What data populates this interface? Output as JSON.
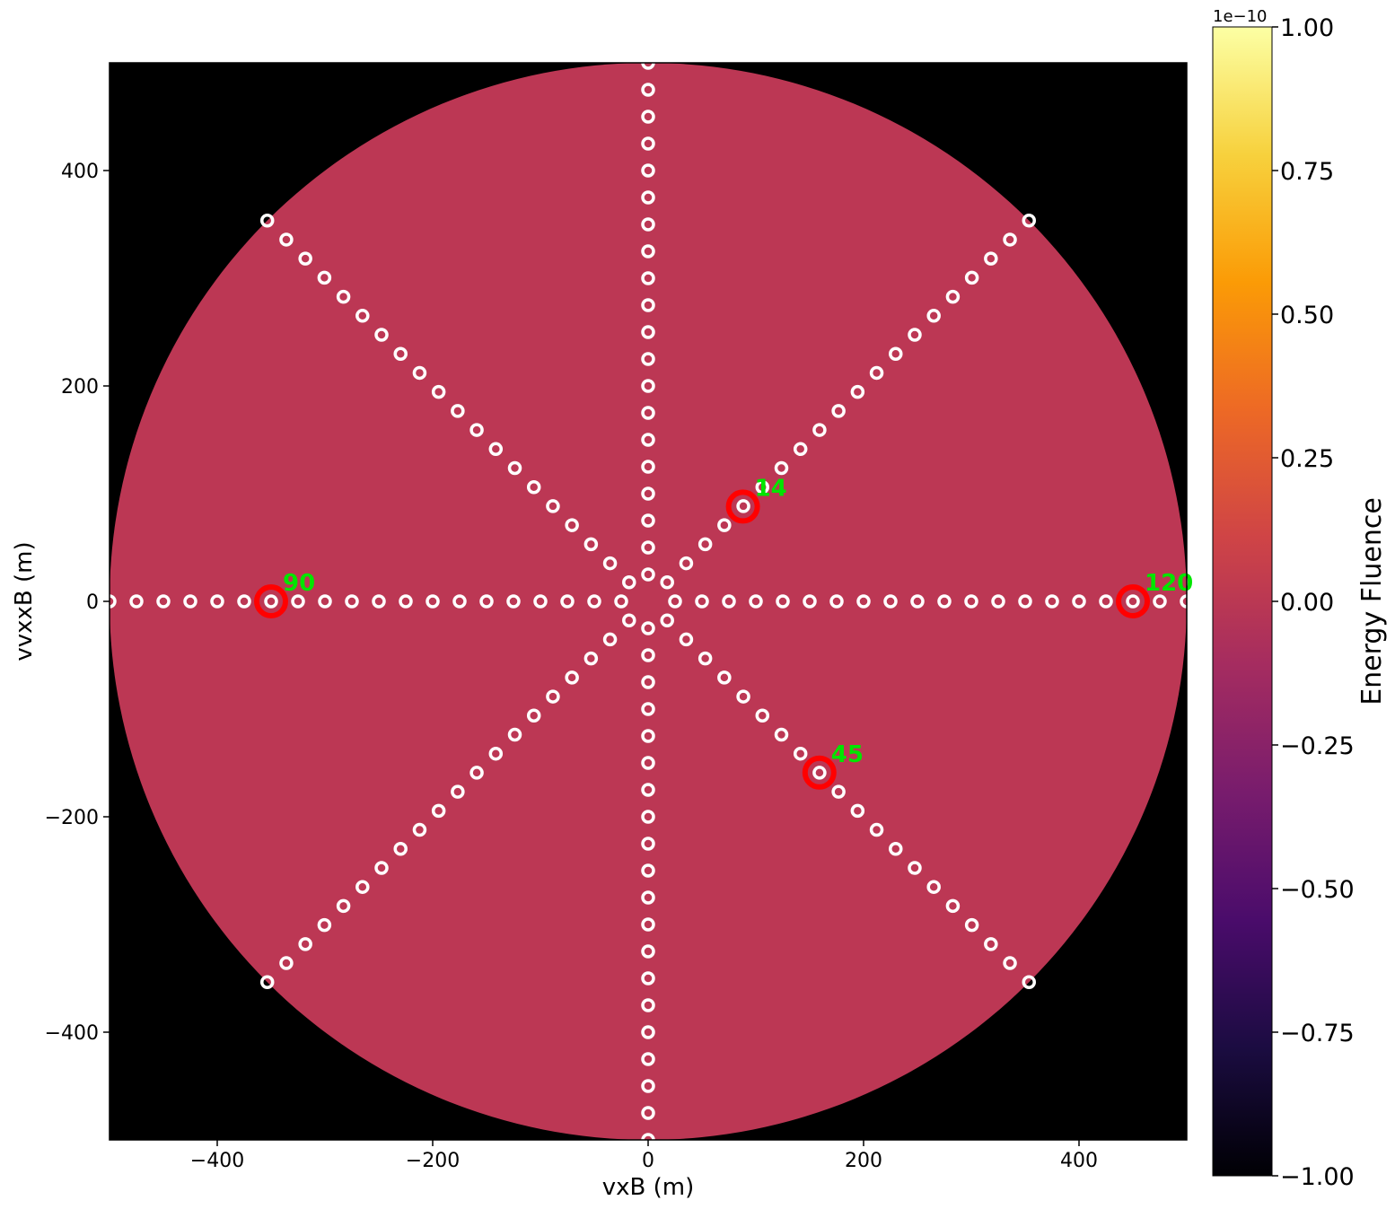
{
  "chart_data": {
    "type": "heatmap",
    "title": "",
    "xlabel": "vxB (m)",
    "ylabel": "vvxxB (m)",
    "xlim": [
      -500,
      500
    ],
    "ylim": [
      -500,
      500
    ],
    "x_ticks": [
      -400,
      -200,
      0,
      200,
      400
    ],
    "y_ticks": [
      -400,
      -200,
      0,
      200,
      400
    ],
    "x_tick_labels": [
      "−400",
      "−200",
      "0",
      "200",
      "400"
    ],
    "y_tick_labels": [
      "−400",
      "−200",
      "0",
      "200",
      "400"
    ],
    "grid": false,
    "background_color": "#000000",
    "field": {
      "shape": "disk",
      "radius": 500,
      "value": 0.0,
      "color": "#bc3754"
    },
    "colorbar": {
      "label": "Energy Fluence",
      "colormap": "inferno",
      "range": [
        -1.0,
        1.0
      ],
      "offset_text": "1e−10",
      "ticks": [
        1.0,
        0.75,
        0.5,
        0.25,
        0.0,
        -0.25,
        -0.5,
        -0.75,
        -1.0
      ],
      "tick_labels": [
        "1.00",
        "0.75",
        "0.50",
        "0.25",
        "0.00",
        "−0.25",
        "−0.50",
        "−0.75",
        "−1.00"
      ],
      "stops": [
        "#000004",
        "#1b0c41",
        "#4a0c6b",
        "#781c6d",
        "#a52c60",
        "#cf4446",
        "#ed6925",
        "#fb9b06",
        "#f7d13d",
        "#fcffa4"
      ]
    },
    "antennas": {
      "arm_angles_deg": [
        0,
        45,
        90,
        135,
        180,
        225,
        270,
        315
      ],
      "spacing": 25,
      "count_per_arm": 20,
      "marker_color": "#ffffff"
    },
    "highlighted": [
      {
        "label": "14",
        "x": 88,
        "y": 88
      },
      {
        "label": "90",
        "x": -350,
        "y": 0
      },
      {
        "label": "120",
        "x": 450,
        "y": 0
      },
      {
        "label": "45",
        "x": 159,
        "y": -159
      }
    ],
    "highlight_ring_color": "#ff0000",
    "highlight_label_color": "#00e600"
  }
}
